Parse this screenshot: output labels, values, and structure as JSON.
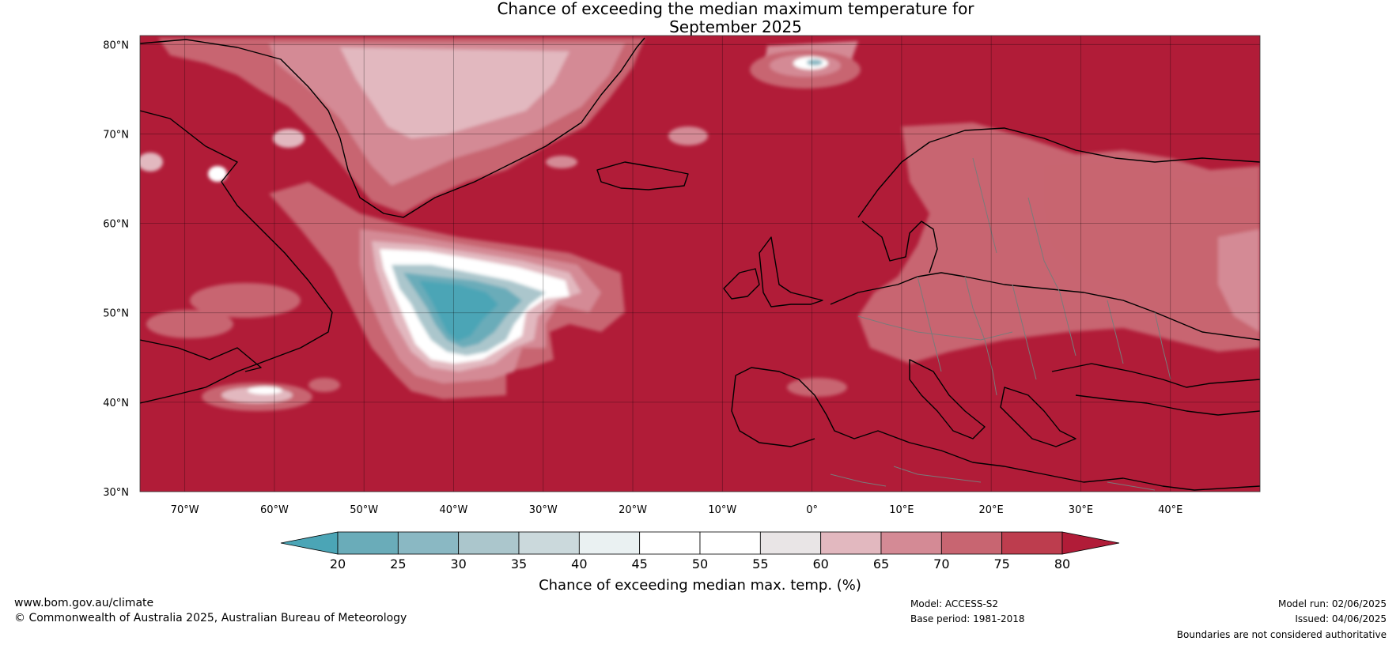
{
  "title": {
    "line1": "Chance of exceeding the median maximum temperature for",
    "line2": "September 2025"
  },
  "map": {
    "lat_labels": [
      "80°N",
      "70°N",
      "60°N",
      "50°N",
      "40°N",
      "30°N"
    ],
    "lon_labels": [
      "70°W",
      "60°W",
      "50°W",
      "40°W",
      "30°W",
      "20°W",
      "10°W",
      "0°",
      "10°E",
      "20°E",
      "30°E",
      "40°E"
    ],
    "lat_range": [
      30,
      81
    ],
    "lon_range": [
      -75,
      50
    ],
    "background_color": "#b11c38"
  },
  "colorbar": {
    "ticks": [
      "20",
      "25",
      "30",
      "35",
      "40",
      "45",
      "50",
      "55",
      "60",
      "65",
      "70",
      "75",
      "80"
    ],
    "colors": [
      "#4ba5b6",
      "#6aacb9",
      "#8ab8c3",
      "#abc6cc",
      "#cbd9dc",
      "#eaf1f2",
      "#ffffff",
      "#ffffff",
      "#e9e5e6",
      "#e2b8bf",
      "#d48a95",
      "#c86571",
      "#bd3d4e",
      "#b11c38"
    ],
    "label": "Chance of exceeding median max. temp. (%)"
  },
  "footer": {
    "website": "www.bom.gov.au/climate",
    "copyright": "© Commonwealth of Australia 2025, Australian Bureau of Meteorology",
    "model": "Model: ACCESS-S2",
    "base_period": "Base period: 1981-2018",
    "model_run": "Model run: 02/06/2025",
    "issued": "Issued: 04/06/2025",
    "disclaimer": "Boundaries are not considered authoritative"
  }
}
